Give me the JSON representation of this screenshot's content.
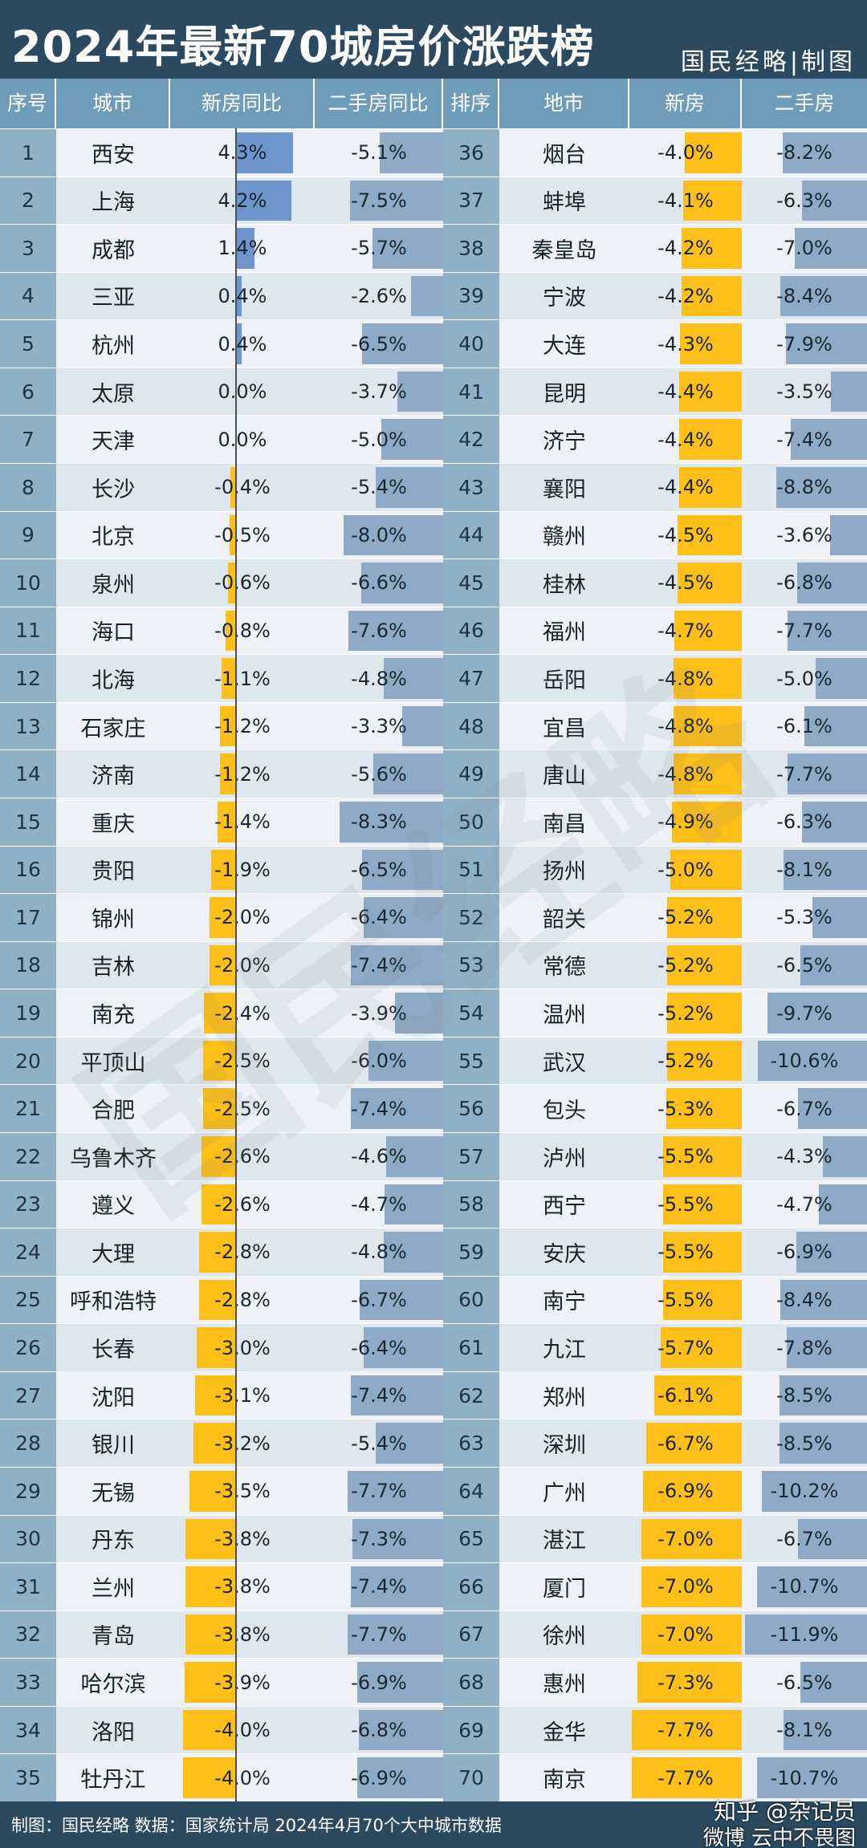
{
  "header": {
    "title": "2024年最新70城房价涨跌榜",
    "brand": "国民经略|制图"
  },
  "columns": {
    "left": [
      "序号",
      "城市",
      "新房同比",
      "二手房同比"
    ],
    "right": [
      "排序",
      "地市",
      "新房",
      "二手房"
    ]
  },
  "footer": {
    "text": "制图：国民经略  数据：国家统计局  2024年4月70个大中城市数据",
    "watermark_zhihu": "知乎 @杂记员",
    "watermark_weibo": "微博 云中不畏图",
    "big_watermark": "国民经略"
  },
  "colors": {
    "positive_bar": "#6e95cc",
    "negative_bar": "#fdbf18",
    "secondhand_bar": "#8eaac6",
    "header_bg": "#2b4a60",
    "column_header_bg": "#6f9cb8"
  },
  "chart_data": {
    "type": "table",
    "title": "2024年最新70城房价涨跌榜",
    "left_table": [
      {
        "rank": "1",
        "city": "西安",
        "new": 4.3,
        "new_label": "4.3%",
        "second": -5.1,
        "second_label": "-5.1%"
      },
      {
        "rank": "2",
        "city": "上海",
        "new": 4.2,
        "new_label": "4.2%",
        "second": -7.5,
        "second_label": "-7.5%"
      },
      {
        "rank": "3",
        "city": "成都",
        "new": 1.4,
        "new_label": "1.4%",
        "second": -5.7,
        "second_label": "-5.7%"
      },
      {
        "rank": "4",
        "city": "三亚",
        "new": 0.4,
        "new_label": "0.4%",
        "second": -2.6,
        "second_label": "-2.6%"
      },
      {
        "rank": "5",
        "city": "杭州",
        "new": 0.4,
        "new_label": "0.4%",
        "second": -6.5,
        "second_label": "-6.5%"
      },
      {
        "rank": "6",
        "city": "太原",
        "new": 0.0,
        "new_label": "0.0%",
        "second": -3.7,
        "second_label": "-3.7%"
      },
      {
        "rank": "7",
        "city": "天津",
        "new": 0.0,
        "new_label": "0.0%",
        "second": -5.0,
        "second_label": "-5.0%"
      },
      {
        "rank": "8",
        "city": "长沙",
        "new": -0.4,
        "new_label": "-0.4%",
        "second": -5.4,
        "second_label": "-5.4%"
      },
      {
        "rank": "9",
        "city": "北京",
        "new": -0.5,
        "new_label": "-0.5%",
        "second": -8.0,
        "second_label": "-8.0%"
      },
      {
        "rank": "10",
        "city": "泉州",
        "new": -0.6,
        "new_label": "-0.6%",
        "second": -6.6,
        "second_label": "-6.6%"
      },
      {
        "rank": "11",
        "city": "海口",
        "new": -0.8,
        "new_label": "-0.8%",
        "second": -7.6,
        "second_label": "-7.6%"
      },
      {
        "rank": "12",
        "city": "北海",
        "new": -1.1,
        "new_label": "-1.1%",
        "second": -4.8,
        "second_label": "-4.8%"
      },
      {
        "rank": "13",
        "city": "石家庄",
        "new": -1.2,
        "new_label": "-1.2%",
        "second": -3.3,
        "second_label": "-3.3%"
      },
      {
        "rank": "14",
        "city": "济南",
        "new": -1.2,
        "new_label": "-1.2%",
        "second": -5.6,
        "second_label": "-5.6%"
      },
      {
        "rank": "15",
        "city": "重庆",
        "new": -1.4,
        "new_label": "-1.4%",
        "second": -8.3,
        "second_label": "-8.3%"
      },
      {
        "rank": "16",
        "city": "贵阳",
        "new": -1.9,
        "new_label": "-1.9%",
        "second": -6.5,
        "second_label": "-6.5%"
      },
      {
        "rank": "17",
        "city": "锦州",
        "new": -2.0,
        "new_label": "-2.0%",
        "second": -6.4,
        "second_label": "-6.4%"
      },
      {
        "rank": "18",
        "city": "吉林",
        "new": -2.0,
        "new_label": "-2.0%",
        "second": -7.4,
        "second_label": "-7.4%"
      },
      {
        "rank": "19",
        "city": "南充",
        "new": -2.4,
        "new_label": "-2.4%",
        "second": -3.9,
        "second_label": "-3.9%"
      },
      {
        "rank": "20",
        "city": "平顶山",
        "new": -2.5,
        "new_label": "-2.5%",
        "second": -6.0,
        "second_label": "-6.0%"
      },
      {
        "rank": "21",
        "city": "合肥",
        "new": -2.5,
        "new_label": "-2.5%",
        "second": -7.4,
        "second_label": "-7.4%"
      },
      {
        "rank": "22",
        "city": "乌鲁木齐",
        "new": -2.6,
        "new_label": "-2.6%",
        "second": -4.6,
        "second_label": "-4.6%"
      },
      {
        "rank": "23",
        "city": "遵义",
        "new": -2.6,
        "new_label": "-2.6%",
        "second": -4.7,
        "second_label": "-4.7%"
      },
      {
        "rank": "24",
        "city": "大理",
        "new": -2.8,
        "new_label": "-2.8%",
        "second": -4.8,
        "second_label": "-4.8%"
      },
      {
        "rank": "25",
        "city": "呼和浩特",
        "new": -2.8,
        "new_label": "-2.8%",
        "second": -6.7,
        "second_label": "-6.7%"
      },
      {
        "rank": "26",
        "city": "长春",
        "new": -3.0,
        "new_label": "-3.0%",
        "second": -6.4,
        "second_label": "-6.4%"
      },
      {
        "rank": "27",
        "city": "沈阳",
        "new": -3.1,
        "new_label": "-3.1%",
        "second": -7.4,
        "second_label": "-7.4%"
      },
      {
        "rank": "28",
        "city": "银川",
        "new": -3.2,
        "new_label": "-3.2%",
        "second": -5.4,
        "second_label": "-5.4%"
      },
      {
        "rank": "29",
        "city": "无锡",
        "new": -3.5,
        "new_label": "-3.5%",
        "second": -7.7,
        "second_label": "-7.7%"
      },
      {
        "rank": "30",
        "city": "丹东",
        "new": -3.8,
        "new_label": "-3.8%",
        "second": -7.3,
        "second_label": "-7.3%"
      },
      {
        "rank": "31",
        "city": "兰州",
        "new": -3.8,
        "new_label": "-3.8%",
        "second": -7.4,
        "second_label": "-7.4%"
      },
      {
        "rank": "32",
        "city": "青岛",
        "new": -3.8,
        "new_label": "-3.8%",
        "second": -7.7,
        "second_label": "-7.7%"
      },
      {
        "rank": "33",
        "city": "哈尔滨",
        "new": -3.9,
        "new_label": "-3.9%",
        "second": -6.9,
        "second_label": "-6.9%"
      },
      {
        "rank": "34",
        "city": "洛阳",
        "new": -4.0,
        "new_label": "-4.0%",
        "second": -6.8,
        "second_label": "-6.8%"
      },
      {
        "rank": "35",
        "city": "牡丹江",
        "new": -4.0,
        "new_label": "-4.0%",
        "second": -6.9,
        "second_label": "-6.9%"
      }
    ],
    "right_table": [
      {
        "rank": "36",
        "city": "烟台",
        "new": -4.0,
        "new_label": "-4.0%",
        "second": -8.2,
        "second_label": "-8.2%"
      },
      {
        "rank": "37",
        "city": "蚌埠",
        "new": -4.1,
        "new_label": "-4.1%",
        "second": -6.3,
        "second_label": "-6.3%"
      },
      {
        "rank": "38",
        "city": "秦皇岛",
        "new": -4.2,
        "new_label": "-4.2%",
        "second": -7.0,
        "second_label": "-7.0%"
      },
      {
        "rank": "39",
        "city": "宁波",
        "new": -4.2,
        "new_label": "-4.2%",
        "second": -8.4,
        "second_label": "-8.4%"
      },
      {
        "rank": "40",
        "city": "大连",
        "new": -4.3,
        "new_label": "-4.3%",
        "second": -7.9,
        "second_label": "-7.9%"
      },
      {
        "rank": "41",
        "city": "昆明",
        "new": -4.4,
        "new_label": "-4.4%",
        "second": -3.5,
        "second_label": "-3.5%"
      },
      {
        "rank": "42",
        "city": "济宁",
        "new": -4.4,
        "new_label": "-4.4%",
        "second": -7.4,
        "second_label": "-7.4%"
      },
      {
        "rank": "43",
        "city": "襄阳",
        "new": -4.4,
        "new_label": "-4.4%",
        "second": -8.8,
        "second_label": "-8.8%"
      },
      {
        "rank": "44",
        "city": "赣州",
        "new": -4.5,
        "new_label": "-4.5%",
        "second": -3.6,
        "second_label": "-3.6%"
      },
      {
        "rank": "45",
        "city": "桂林",
        "new": -4.5,
        "new_label": "-4.5%",
        "second": -6.8,
        "second_label": "-6.8%"
      },
      {
        "rank": "46",
        "city": "福州",
        "new": -4.7,
        "new_label": "-4.7%",
        "second": -7.7,
        "second_label": "-7.7%"
      },
      {
        "rank": "47",
        "city": "岳阳",
        "new": -4.8,
        "new_label": "-4.8%",
        "second": -5.0,
        "second_label": "-5.0%"
      },
      {
        "rank": "48",
        "city": "宜昌",
        "new": -4.8,
        "new_label": "-4.8%",
        "second": -6.1,
        "second_label": "-6.1%"
      },
      {
        "rank": "49",
        "city": "唐山",
        "new": -4.8,
        "new_label": "-4.8%",
        "second": -7.7,
        "second_label": "-7.7%"
      },
      {
        "rank": "50",
        "city": "南昌",
        "new": -4.9,
        "new_label": "-4.9%",
        "second": -6.3,
        "second_label": "-6.3%"
      },
      {
        "rank": "51",
        "city": "扬州",
        "new": -5.0,
        "new_label": "-5.0%",
        "second": -8.1,
        "second_label": "-8.1%"
      },
      {
        "rank": "52",
        "city": "韶关",
        "new": -5.2,
        "new_label": "-5.2%",
        "second": -5.3,
        "second_label": "-5.3%"
      },
      {
        "rank": "53",
        "city": "常德",
        "new": -5.2,
        "new_label": "-5.2%",
        "second": -6.5,
        "second_label": "-6.5%"
      },
      {
        "rank": "54",
        "city": "温州",
        "new": -5.2,
        "new_label": "-5.2%",
        "second": -9.7,
        "second_label": "-9.7%"
      },
      {
        "rank": "55",
        "city": "武汉",
        "new": -5.2,
        "new_label": "-5.2%",
        "second": -10.6,
        "second_label": "-10.6%"
      },
      {
        "rank": "56",
        "city": "包头",
        "new": -5.3,
        "new_label": "-5.3%",
        "second": -6.7,
        "second_label": "-6.7%"
      },
      {
        "rank": "57",
        "city": "泸州",
        "new": -5.5,
        "new_label": "-5.5%",
        "second": -4.3,
        "second_label": "-4.3%"
      },
      {
        "rank": "58",
        "city": "西宁",
        "new": -5.5,
        "new_label": "-5.5%",
        "second": -4.7,
        "second_label": "-4.7%"
      },
      {
        "rank": "59",
        "city": "安庆",
        "new": -5.5,
        "new_label": "-5.5%",
        "second": -6.9,
        "second_label": "-6.9%"
      },
      {
        "rank": "60",
        "city": "南宁",
        "new": -5.5,
        "new_label": "-5.5%",
        "second": -8.4,
        "second_label": "-8.4%"
      },
      {
        "rank": "61",
        "city": "九江",
        "new": -5.7,
        "new_label": "-5.7%",
        "second": -7.8,
        "second_label": "-7.8%"
      },
      {
        "rank": "62",
        "city": "郑州",
        "new": -6.1,
        "new_label": "-6.1%",
        "second": -8.5,
        "second_label": "-8.5%"
      },
      {
        "rank": "63",
        "city": "深圳",
        "new": -6.7,
        "new_label": "-6.7%",
        "second": -8.5,
        "second_label": "-8.5%"
      },
      {
        "rank": "64",
        "city": "广州",
        "new": -6.9,
        "new_label": "-6.9%",
        "second": -10.2,
        "second_label": "-10.2%"
      },
      {
        "rank": "65",
        "city": "湛江",
        "new": -7.0,
        "new_label": "-7.0%",
        "second": -6.7,
        "second_label": "-6.7%"
      },
      {
        "rank": "66",
        "city": "厦门",
        "new": -7.0,
        "new_label": "-7.0%",
        "second": -10.7,
        "second_label": "-10.7%"
      },
      {
        "rank": "67",
        "city": "徐州",
        "new": -7.0,
        "new_label": "-7.0%",
        "second": -11.9,
        "second_label": "-11.9%"
      },
      {
        "rank": "68",
        "city": "惠州",
        "new": -7.3,
        "new_label": "-7.3%",
        "second": -6.5,
        "second_label": "-6.5%"
      },
      {
        "rank": "69",
        "city": "金华",
        "new": -7.7,
        "new_label": "-7.7%",
        "second": -8.1,
        "second_label": "-8.1%"
      },
      {
        "rank": "70",
        "city": "南京",
        "new": -7.7,
        "new_label": "-7.7%",
        "second": -10.7,
        "second_label": "-10.7%"
      }
    ]
  }
}
